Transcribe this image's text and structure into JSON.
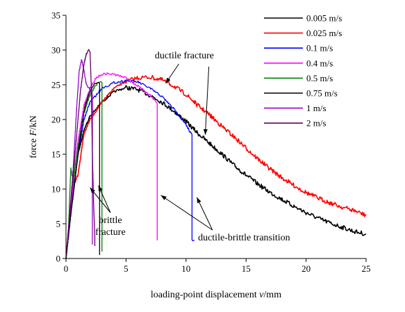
{
  "chart_data": {
    "type": "line",
    "title": "",
    "xlabel": "loading-point displacement v/mm",
    "xlabel_prefix": "loading-point displacement ",
    "xlabel_var": "v",
    "xlabel_unit": "/mm",
    "ylabel": "force F/kN",
    "ylabel_prefix": "force ",
    "ylabel_var": "F",
    "ylabel_unit": "/kN",
    "xlim": [
      0,
      25
    ],
    "ylim": [
      0,
      35
    ],
    "xticks": [
      0,
      5,
      10,
      15,
      20,
      25
    ],
    "yticks": [
      0,
      5,
      10,
      15,
      20,
      25,
      30,
      35
    ],
    "grid": false,
    "legend_position": "top-right",
    "series": [
      {
        "name": "0.005 m/s",
        "color": "#000000",
        "x": [
          0,
          0.5,
          1,
          1.5,
          2,
          3,
          4,
          5,
          6,
          7,
          8,
          9,
          10,
          11,
          12,
          13,
          14,
          15,
          16,
          17,
          18,
          19,
          20,
          21,
          22,
          23,
          24,
          25
        ],
        "y": [
          0,
          8,
          15,
          18.5,
          20.5,
          22.5,
          24,
          24.6,
          24.3,
          23.5,
          22.5,
          21.2,
          19.7,
          18,
          16.5,
          15,
          13.4,
          12,
          10.7,
          9.5,
          8.5,
          7.5,
          6.6,
          5.8,
          5.1,
          4.5,
          3.9,
          3.5
        ]
      },
      {
        "name": "0.025 m/s",
        "color": "#ff0000",
        "x": [
          0,
          0.5,
          1,
          1.5,
          2,
          3,
          4,
          5,
          6,
          7,
          8,
          9,
          10,
          11,
          12,
          13,
          14,
          15,
          16,
          17,
          18,
          19,
          20,
          21,
          22,
          23,
          24,
          25
        ],
        "y": [
          0,
          10,
          12,
          18,
          20,
          22.5,
          24.5,
          25.5,
          26,
          26.1,
          25.7,
          24.8,
          23.6,
          22,
          20.6,
          19,
          17.5,
          15.9,
          14.3,
          12.9,
          11.6,
          10.5,
          9.5,
          8.7,
          8,
          7.4,
          6.9,
          6.2
        ]
      },
      {
        "name": "0.1 m/s",
        "color": "#0000ff",
        "x": [
          0,
          0.5,
          1,
          1.5,
          2,
          3,
          4,
          5,
          6,
          7,
          8,
          9,
          10,
          10.5,
          10.5,
          10.7
        ],
        "y": [
          0,
          8,
          15,
          20,
          22.5,
          24.5,
          25.3,
          25.6,
          25.4,
          24.5,
          23.3,
          21.5,
          19.2,
          17.8,
          2.6,
          2.6
        ]
      },
      {
        "name": "0.4 m/s",
        "color": "#ff00ff",
        "x": [
          0,
          0.5,
          1,
          1.5,
          2,
          2.5,
          3,
          3.5,
          4,
          5,
          6,
          7,
          7.5,
          7.6,
          7.6
        ],
        "y": [
          0,
          9,
          17,
          22,
          24.5,
          26,
          26.5,
          26.6,
          26.5,
          26,
          24.8,
          23.5,
          22.5,
          22.3,
          2.6
        ]
      },
      {
        "name": "0.5 m/s",
        "color": "#008000",
        "x": [
          0,
          0.2,
          0.4,
          0.6,
          0.8,
          1,
          1.2,
          1.5,
          2,
          2.5,
          2.9,
          3,
          3
        ],
        "y": [
          0,
          4,
          13,
          11,
          14,
          16,
          18,
          21,
          23.5,
          25,
          25.5,
          25.3,
          1
        ]
      },
      {
        "name": "0.75 m/s",
        "color": "#000000",
        "x": [
          0,
          0.3,
          0.6,
          1,
          1.3,
          1.6,
          2,
          2.3,
          2.6,
          2.8,
          2.8
        ],
        "y": [
          0,
          5,
          9,
          15,
          19,
          22,
          24,
          25,
          25.3,
          25.2,
          0.5
        ]
      },
      {
        "name": "1 m/s",
        "color": "#9900cc",
        "x": [
          0,
          0.3,
          0.6,
          0.9,
          1.1,
          1.3,
          1.5,
          1.7,
          1.9,
          2.1,
          2.2,
          2.2
        ],
        "y": [
          0,
          6,
          13,
          22,
          27,
          28.6,
          27,
          25,
          24.5,
          24,
          23.5,
          2
        ]
      },
      {
        "name": "2 m/s",
        "color": "#660066",
        "x": [
          0,
          0.4,
          0.8,
          1.2,
          1.5,
          1.7,
          1.9,
          2,
          2.1,
          2.2,
          2.3,
          2.4,
          2.4
        ],
        "y": [
          0,
          8,
          16,
          24,
          28,
          29.5,
          30,
          29.8,
          25,
          15,
          8,
          3,
          1.8
        ]
      }
    ],
    "annotations": [
      {
        "text": "ductile fracture",
        "x": 7.4,
        "y": 28.8,
        "arrows": [
          {
            "x1": 9.4,
            "y1": 28,
            "x2": 8.3,
            "y2": 25.2
          },
          {
            "x1": 11.9,
            "y1": 27.6,
            "x2": 11.6,
            "y2": 17.8
          }
        ]
      },
      {
        "text_lines": [
          "brittle",
          "fracture"
        ],
        "x": 3.7,
        "y": 5.1,
        "arrows": [
          {
            "x1": 3.7,
            "y1": 6.6,
            "x2": 2.7,
            "y2": 10.5
          },
          {
            "x1": 3.7,
            "y1": 6.6,
            "x2": 2.0,
            "y2": 10.2
          }
        ]
      },
      {
        "text": "ductile-brittle transition",
        "x": 11,
        "y": 2.6,
        "arrows": [
          {
            "x1": 12.2,
            "y1": 4.1,
            "x2": 7.9,
            "y2": 9.1
          },
          {
            "x1": 12.2,
            "y1": 4.1,
            "x2": 10.9,
            "y2": 8.8
          }
        ]
      }
    ]
  }
}
